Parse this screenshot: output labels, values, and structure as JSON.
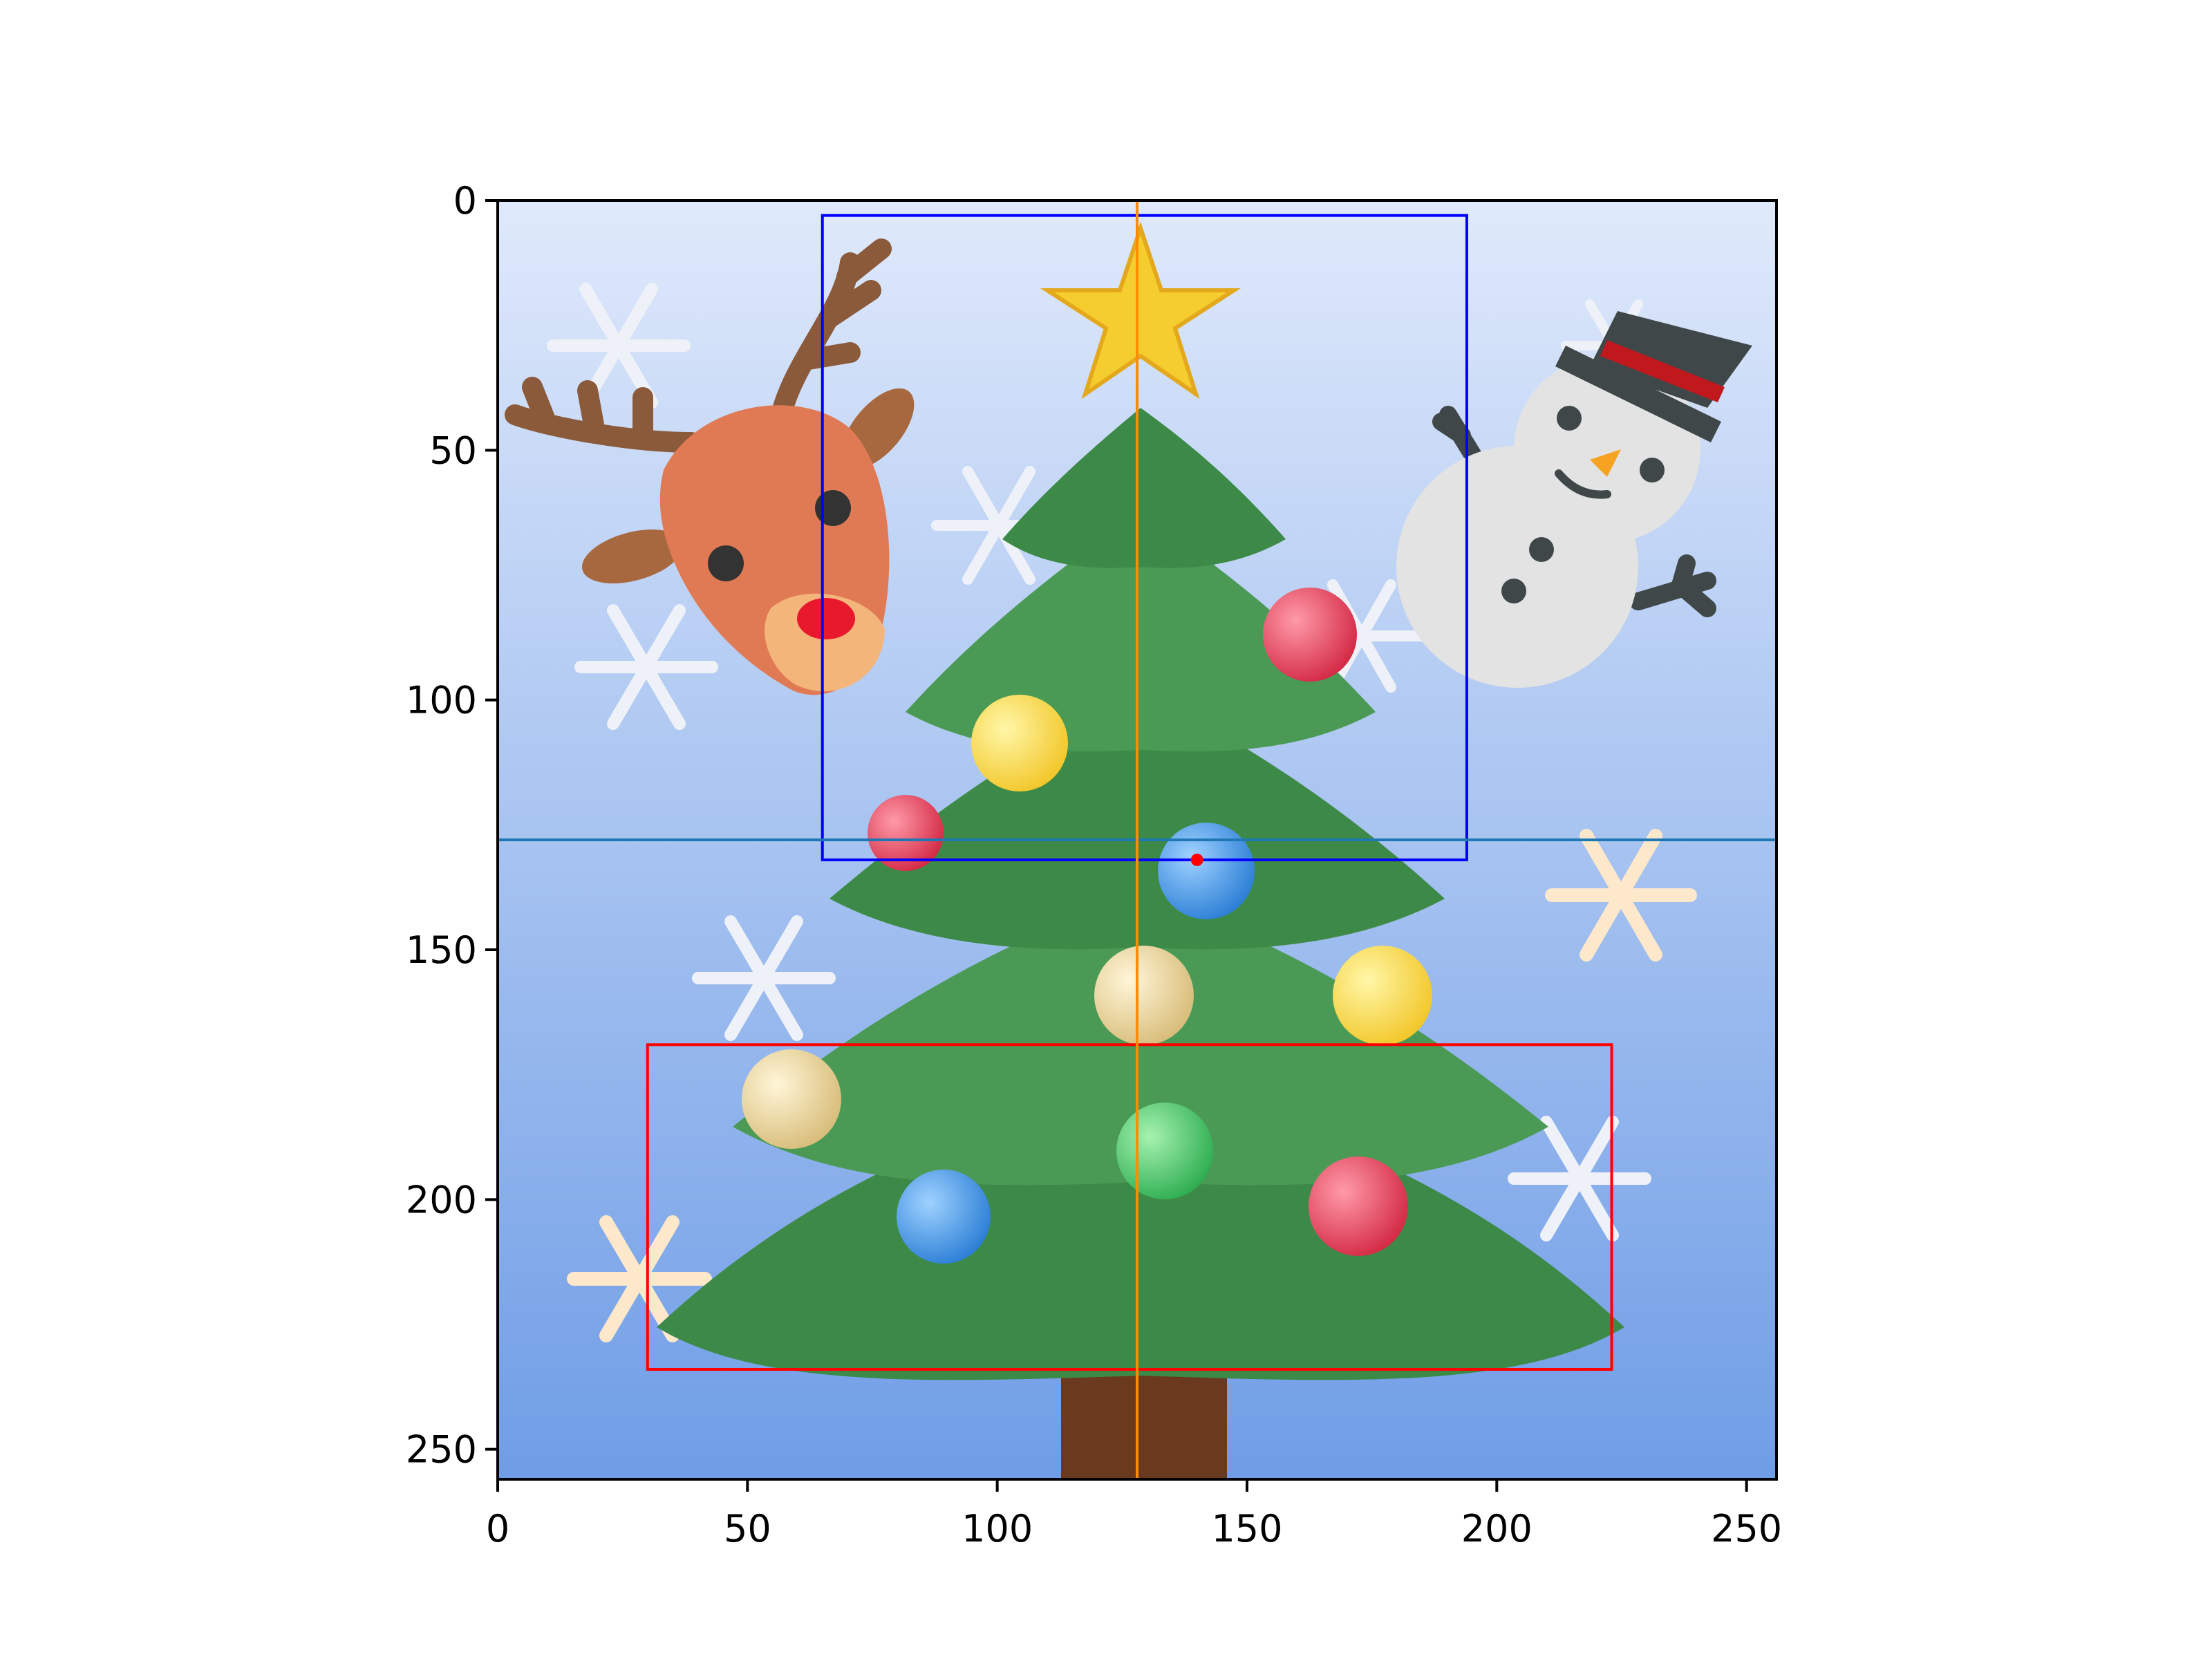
{
  "chart_data": {
    "type": "image_plot",
    "title": "",
    "xlabel": "",
    "ylabel": "",
    "xlim": [
      0,
      256
    ],
    "ylim": [
      256,
      0
    ],
    "x_ticks": [
      0,
      50,
      100,
      150,
      200,
      250
    ],
    "y_ticks": [
      0,
      50,
      100,
      150,
      200,
      250
    ],
    "grid": false,
    "legend": "none",
    "image_content": "Christmas tree emoji with star and ornaments, reindeer head, snowman with top hat, snowflakes on a light-blue gradient background",
    "overlays": {
      "hline": {
        "y": 128,
        "color": "#1f77b4"
      },
      "vline": {
        "x": 128,
        "color": "#ff8c00"
      },
      "boxes": [
        {
          "name": "blue-box",
          "x0": 65,
          "y0": 3,
          "x1": 194,
          "y1": 132,
          "color": "#0000ff"
        },
        {
          "name": "red-box",
          "x0": 30,
          "y0": 169,
          "x1": 223,
          "y1": 234,
          "color": "#ff0000"
        }
      ],
      "points": [
        {
          "name": "red-point",
          "x": 140,
          "y": 132,
          "color": "#ff0000"
        }
      ]
    },
    "colors": {
      "bg_top": "#dfe9fb",
      "bg_bottom": "#6f9de6"
    }
  }
}
